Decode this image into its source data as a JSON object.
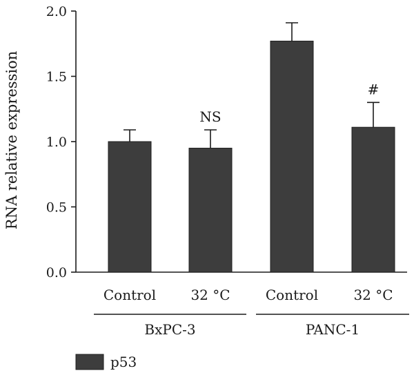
{
  "chart_data": {
    "type": "bar",
    "ylabel": "RNA relative expression",
    "ylim": [
      0,
      2.0
    ],
    "yticks": [
      "0.0",
      "0.5",
      "1.0",
      "1.5",
      "2.0"
    ],
    "categories": [
      "Control",
      "32 °C",
      "Control",
      "32 °C"
    ],
    "groups": [
      {
        "label": "BxPC-3",
        "categories": [
          0,
          1
        ]
      },
      {
        "label": "PANC-1",
        "categories": [
          2,
          3
        ]
      }
    ],
    "series": [
      {
        "name": "p53",
        "color": "#3d3d3d",
        "values": [
          1.0,
          0.95,
          1.77,
          1.11
        ],
        "errors": [
          0.09,
          0.14,
          0.14,
          0.19
        ]
      }
    ],
    "annotations": [
      "",
      "NS",
      "",
      "#"
    ],
    "legend": {
      "position": "bottom-left",
      "entries": [
        "p53"
      ]
    },
    "grid": false
  }
}
